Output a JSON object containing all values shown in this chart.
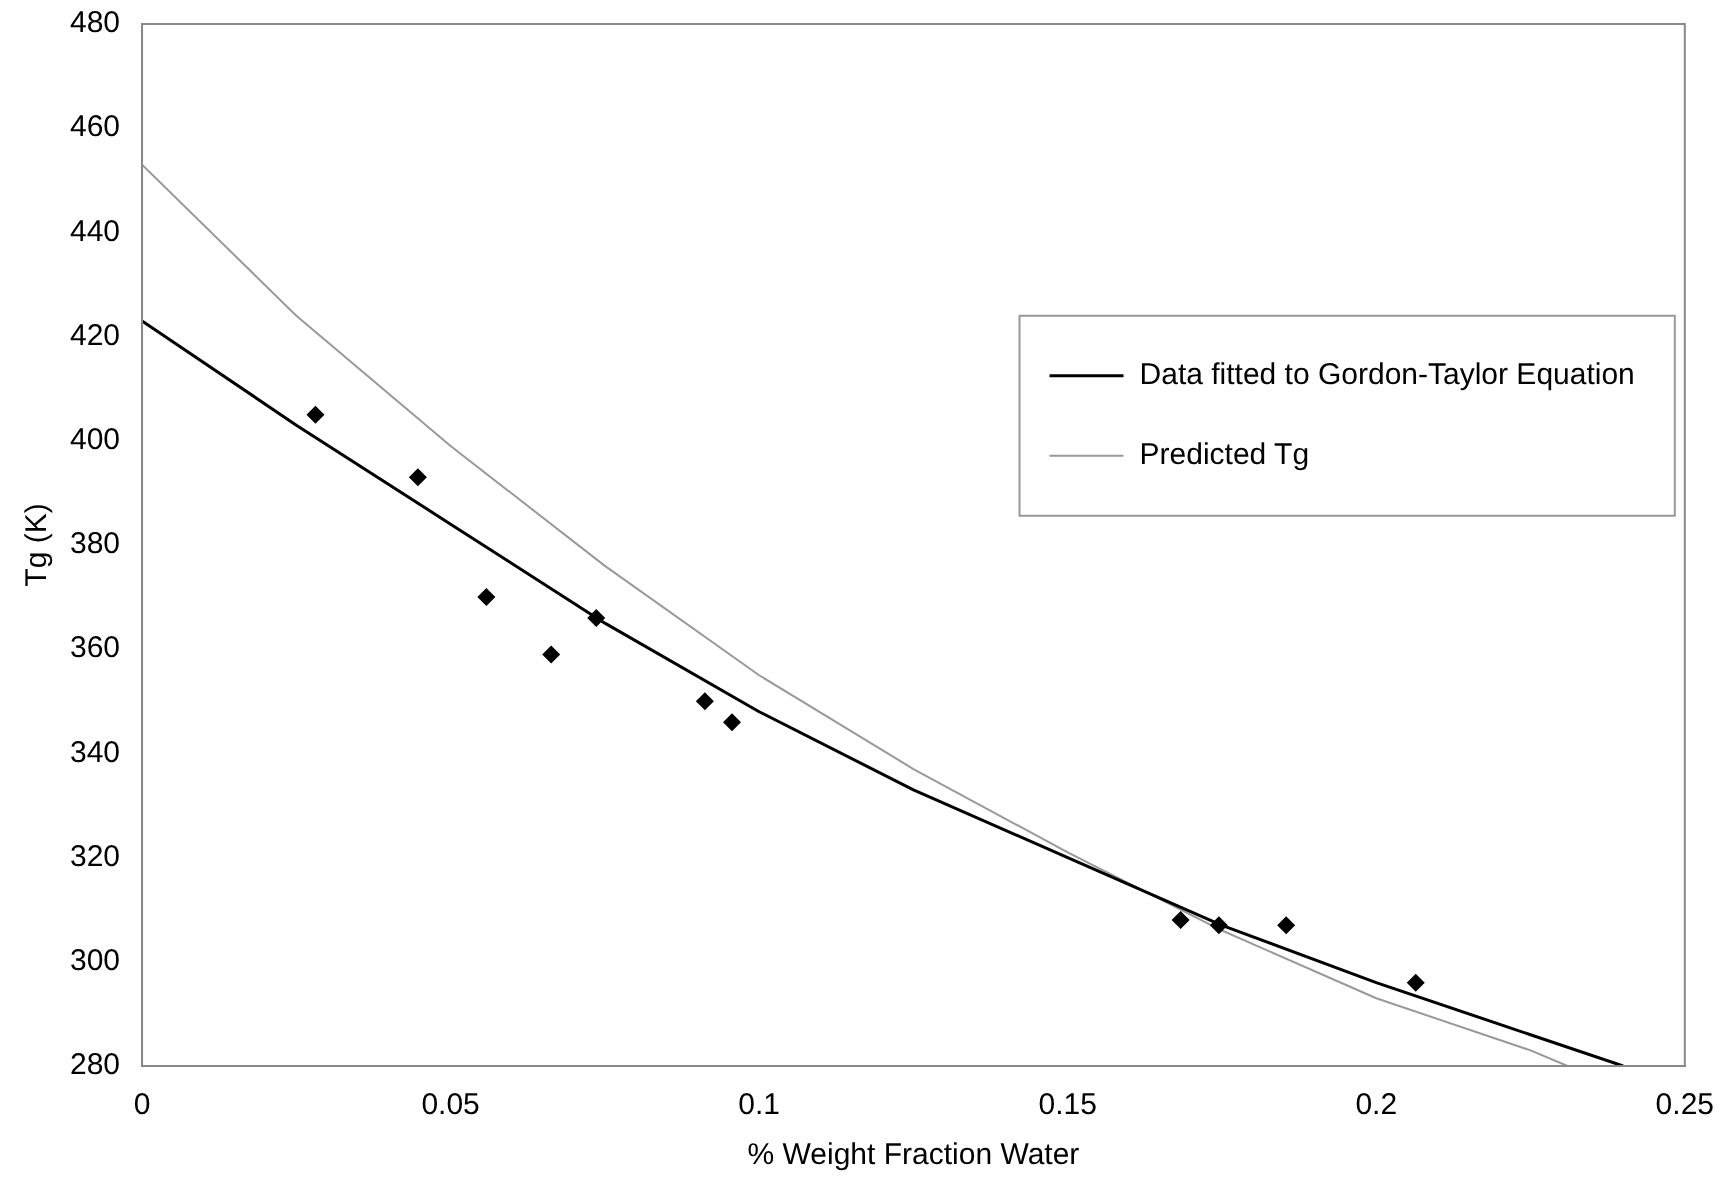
{
  "chart_data": {
    "type": "scatter",
    "xlabel": "% Weight Fraction Water",
    "ylabel": "Tg (K)",
    "xlim": [
      0,
      0.25
    ],
    "xticks": [
      0,
      0.05,
      0.1,
      0.15,
      0.2,
      0.25
    ],
    "ylim": [
      280,
      480
    ],
    "yticks": [
      280,
      300,
      320,
      340,
      360,
      380,
      400,
      420,
      440,
      460,
      480
    ],
    "grid": false,
    "legend": "right",
    "marker": "diamond",
    "series": [
      {
        "type": "scatter",
        "color": "#000000",
        "x": [
          0.0281,
          0.0447,
          0.0558,
          0.0663,
          0.0736,
          0.0912,
          0.0956,
          0.1683,
          0.1745,
          0.1854,
          0.2064
        ],
        "values": [
          405,
          393,
          370,
          359,
          366,
          350,
          346,
          308,
          307,
          307,
          296
        ]
      },
      {
        "type": "line",
        "name": "Data fitted to Gordon-Taylor Equation",
        "color": "#000000",
        "marker": "none",
        "x": [
          0,
          0.025,
          0.05,
          0.075,
          0.1,
          0.125,
          0.15,
          0.175,
          0.2,
          0.225,
          0.24
        ],
        "values": [
          423,
          403,
          384,
          365,
          348,
          333,
          320,
          307,
          296,
          286,
          280
        ]
      },
      {
        "type": "line",
        "name": "Predicted Tg",
        "color": "#999999",
        "marker": "none",
        "x": [
          0,
          0.025,
          0.05,
          0.075,
          0.1,
          0.125,
          0.15,
          0.175,
          0.2,
          0.225,
          0.231
        ],
        "values": [
          453,
          424,
          399,
          376,
          355,
          337,
          321,
          306,
          293,
          283,
          280
        ]
      }
    ]
  }
}
